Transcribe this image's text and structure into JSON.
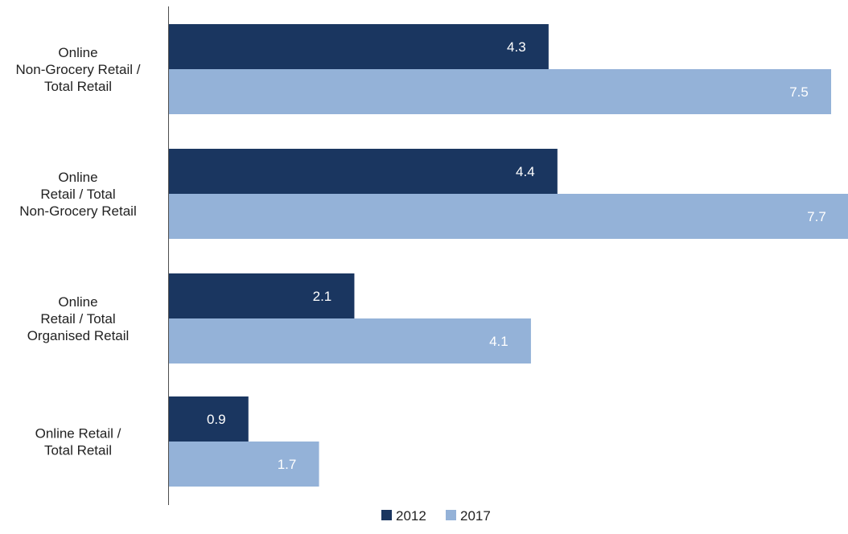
{
  "chart_data": {
    "type": "bar",
    "orientation": "horizontal",
    "categories": [
      [
        "Online",
        "Non-Grocery Retail /",
        "Total Retail"
      ],
      [
        "Online",
        "Retail / Total",
        "Non-Grocery Retail"
      ],
      [
        "Online",
        "Retail / Total",
        "Organised Retail"
      ],
      [
        "Online Retail /",
        "Total Retail"
      ]
    ],
    "series": [
      {
        "name": "2012",
        "color": "#1a3660",
        "label_color": "#ffffff",
        "values": [
          4.3,
          4.4,
          2.1,
          0.9
        ]
      },
      {
        "name": "2017",
        "color": "#94b2d8",
        "label_color": "#ffffff",
        "values": [
          7.5,
          7.7,
          4.1,
          1.7
        ]
      }
    ],
    "xlim": [
      0,
      7.6
    ],
    "grid": false,
    "legend_position": "bottom-center",
    "title": "",
    "xlabel": "",
    "ylabel": ""
  }
}
